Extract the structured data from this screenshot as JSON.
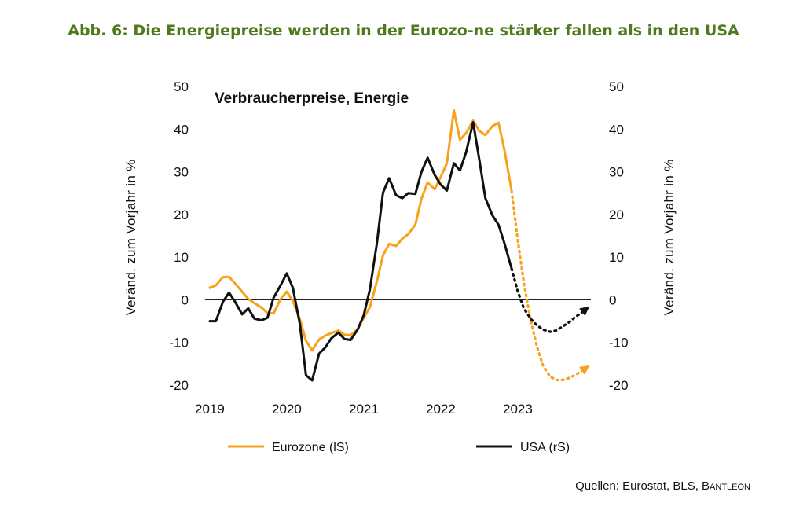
{
  "title": "Abb. 6: Die Energiepreise werden in der Eurozo-ne stärker fallen als in den USA",
  "source": "Quellen: Eurostat, BLS, Bantleon",
  "colors": {
    "title": "#4e7a1c",
    "eurozone": "#f7a21b",
    "usa": "#111111"
  },
  "chart_data": {
    "type": "line",
    "title": "Verbraucherpreise, Energie",
    "ylabel_left": "Veränd. zum Vorjahr in %",
    "ylabel_right": "Veränd. zum Vorjahr in %",
    "x_ticks": [
      "2019",
      "2020",
      "2021",
      "2022",
      "2023"
    ],
    "xlim": [
      2018.95,
      2023.95
    ],
    "ylim": [
      -20,
      50
    ],
    "y_ticks": [
      -20,
      -10,
      0,
      10,
      20,
      30,
      40,
      50
    ],
    "y_tick_labels": [
      "-20",
      "-10",
      "0",
      "10",
      "20",
      "30",
      "40",
      "50"
    ],
    "legend": [
      "Eurozone (lS)",
      "USA (rS)"
    ],
    "series": [
      {
        "name": "Eurozone (lS)",
        "axis": "left",
        "color": "#f7a21b",
        "x": [
          2019.0,
          2019.08,
          2019.17,
          2019.25,
          2019.33,
          2019.42,
          2019.5,
          2019.58,
          2019.67,
          2019.75,
          2019.83,
          2019.92,
          2020.0,
          2020.08,
          2020.17,
          2020.25,
          2020.33,
          2020.42,
          2020.5,
          2020.58,
          2020.67,
          2020.75,
          2020.83,
          2020.92,
          2021.0,
          2021.08,
          2021.17,
          2021.25,
          2021.33,
          2021.42,
          2021.5,
          2021.58,
          2021.67,
          2021.75,
          2021.83,
          2021.92,
          2022.0,
          2022.08,
          2022.17,
          2022.25,
          2022.33,
          2022.42,
          2022.5,
          2022.58,
          2022.67,
          2022.75,
          2022.83,
          2022.92
        ],
        "values": [
          2.8,
          3.4,
          5.3,
          5.4,
          3.8,
          1.9,
          0.2,
          -0.8,
          -1.8,
          -3.1,
          -3.2,
          0.2,
          1.9,
          -0.3,
          -4.5,
          -9.6,
          -11.9,
          -9.3,
          -8.4,
          -7.8,
          -7.2,
          -8.2,
          -8.3,
          -6.9,
          -4.2,
          -1.7,
          4.3,
          10.4,
          13.1,
          12.6,
          14.3,
          15.4,
          17.6,
          23.7,
          27.5,
          25.9,
          28.8,
          32.0,
          44.4,
          37.5,
          39.1,
          42.0,
          39.6,
          38.6,
          40.7,
          41.5,
          34.9,
          25.5
        ],
        "projection": {
          "style": "dotted",
          "x": [
            2022.92,
            2023.0,
            2023.08,
            2023.17,
            2023.25,
            2023.33,
            2023.42,
            2023.5,
            2023.58,
            2023.67,
            2023.75,
            2023.83,
            2023.9
          ],
          "values": [
            25.5,
            14.0,
            4.0,
            -5.0,
            -11.0,
            -15.5,
            -18.0,
            -18.8,
            -18.8,
            -18.3,
            -17.6,
            -16.7,
            -15.8
          ]
        }
      },
      {
        "name": "USA (rS)",
        "axis": "right",
        "color": "#111111",
        "x": [
          2019.0,
          2019.08,
          2019.17,
          2019.25,
          2019.33,
          2019.42,
          2019.5,
          2019.58,
          2019.67,
          2019.75,
          2019.83,
          2019.92,
          2020.0,
          2020.08,
          2020.17,
          2020.25,
          2020.33,
          2020.42,
          2020.5,
          2020.58,
          2020.67,
          2020.75,
          2020.83,
          2020.92,
          2021.0,
          2021.08,
          2021.17,
          2021.25,
          2021.33,
          2021.42,
          2021.5,
          2021.58,
          2021.67,
          2021.75,
          2021.83,
          2021.92,
          2022.0,
          2022.08,
          2022.17,
          2022.25,
          2022.33,
          2022.42,
          2022.5,
          2022.58,
          2022.67,
          2022.75,
          2022.83,
          2022.92
        ],
        "values": [
          -5.0,
          -5.0,
          -0.5,
          1.7,
          -0.5,
          -3.4,
          -2.0,
          -4.4,
          -4.8,
          -4.2,
          0.5,
          3.4,
          6.2,
          2.8,
          -5.7,
          -17.7,
          -18.9,
          -12.6,
          -11.2,
          -9.0,
          -7.7,
          -9.2,
          -9.4,
          -7.0,
          -3.6,
          2.4,
          13.2,
          25.1,
          28.5,
          24.5,
          23.8,
          25.0,
          24.8,
          30.0,
          33.3,
          29.3,
          27.0,
          25.6,
          32.0,
          30.3,
          34.6,
          41.6,
          32.9,
          23.8,
          19.8,
          17.6,
          13.1,
          7.3
        ],
        "projection": {
          "style": "dotted",
          "x": [
            2022.92,
            2023.0,
            2023.08,
            2023.17,
            2023.25,
            2023.33,
            2023.42,
            2023.5,
            2023.58,
            2023.67,
            2023.75,
            2023.83,
            2023.9
          ],
          "values": [
            7.3,
            2.0,
            -2.0,
            -4.5,
            -6.0,
            -7.0,
            -7.5,
            -7.2,
            -6.3,
            -5.2,
            -4.0,
            -3.0,
            -2.0
          ]
        }
      }
    ],
    "grid": false
  }
}
